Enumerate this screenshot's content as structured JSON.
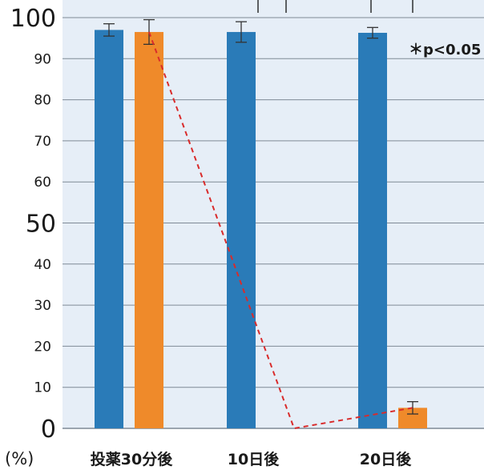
{
  "chart_data": {
    "type": "bar",
    "categories": [
      "投薬30分後",
      "10日後",
      "20日後"
    ],
    "series": [
      {
        "color": "#2a7bb8",
        "values": [
          97,
          96.5,
          96.3
        ],
        "error": [
          1.5,
          2.5,
          1.3
        ]
      },
      {
        "color": "#ef8a2a",
        "values": [
          96.5,
          null,
          5
        ],
        "error": [
          3,
          null,
          1.5
        ]
      }
    ],
    "trend_line": {
      "values": [
        96.5,
        0,
        5
      ],
      "color": "#d92b2b",
      "style": "dashed"
    },
    "y_ticks": [
      {
        "value": 0,
        "label": "0",
        "size": "big"
      },
      {
        "value": 10,
        "label": "10",
        "size": "small"
      },
      {
        "value": 20,
        "label": "20",
        "size": "small"
      },
      {
        "value": 30,
        "label": "30",
        "size": "small"
      },
      {
        "value": 40,
        "label": "40",
        "size": "small"
      },
      {
        "value": 50,
        "label": "50",
        "size": "big"
      },
      {
        "value": 60,
        "label": "60",
        "size": "small"
      },
      {
        "value": 70,
        "label": "70",
        "size": "small"
      },
      {
        "value": 80,
        "label": "80",
        "size": "small"
      },
      {
        "value": 90,
        "label": "90",
        "size": "small"
      },
      {
        "value": 100,
        "label": "100",
        "size": "big"
      }
    ],
    "ylim": [
      0,
      100
    ],
    "unit_label": "(%)",
    "annotation": "＊p<0.05",
    "grid": true,
    "background_color": "#e6eef7",
    "grid_color": "#7f8a96"
  }
}
